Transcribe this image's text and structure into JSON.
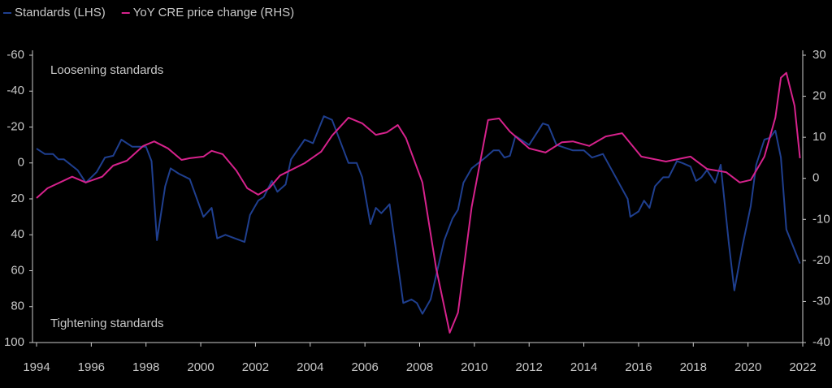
{
  "chart_data": {
    "type": "line",
    "legend": "top-left",
    "y_inverted": true,
    "xlim": [
      1994,
      2022
    ],
    "xticks": [
      1994,
      1996,
      1998,
      2000,
      2002,
      2004,
      2006,
      2008,
      2010,
      2012,
      2014,
      2016,
      2018,
      2020,
      2022
    ],
    "ylim": [
      -60,
      100
    ],
    "yticks": [
      -60,
      -40,
      -20,
      0,
      20,
      40,
      60,
      80,
      100
    ],
    "y2lim": [
      -40,
      30
    ],
    "y2ticks": [
      -40,
      -30,
      -20,
      -10,
      0,
      10,
      20,
      30
    ],
    "annotations": [
      "Loosening standards",
      "Tightening standards"
    ],
    "series": [
      {
        "name": "Standards (LHS)",
        "color": "#1f3f8f",
        "axis": "y",
        "x": [
          1994,
          1994.3,
          1994.6,
          1994.8,
          1995.0,
          1995.5,
          1995.8,
          1996.2,
          1996.5,
          1996.8,
          1997.1,
          1997.5,
          1998.0,
          1998.2,
          1998.4,
          1998.7,
          1998.9,
          1999.2,
          1999.6,
          2000.1,
          2000.4,
          2000.6,
          2000.9,
          2001.6,
          2001.8,
          2002.1,
          2002.3,
          2002.6,
          2002.8,
          2003.1,
          2003.3,
          2003.8,
          2004.1,
          2004.5,
          2004.8,
          2005.4,
          2005.7,
          2005.9,
          2006.2,
          2006.4,
          2006.6,
          2006.9,
          2007.4,
          2007.7,
          2007.9,
          2008.1,
          2008.4,
          2008.9,
          2009.2,
          2009.4,
          2009.6,
          2009.9,
          2010.4,
          2010.7,
          2010.9,
          2011.1,
          2011.3,
          2011.5,
          2011.8,
          2012.0,
          2012.5,
          2012.7,
          2013.0,
          2013.6,
          2014.0,
          2014.3,
          2014.7,
          2015.6,
          2015.7,
          2016.0,
          2016.2,
          2016.4,
          2016.6,
          2016.9,
          2017.1,
          2017.4,
          2017.6,
          2017.9,
          2018.1,
          2018.3,
          2018.5,
          2018.8,
          2019.0,
          2019.3,
          2019.5,
          2019.8,
          2020.1,
          2020.3,
          2020.6,
          2020.8,
          2021.0,
          2021.2,
          2021.4,
          2021.9
        ],
        "values": [
          -8,
          -5,
          -5,
          -2,
          -2,
          4,
          11,
          5,
          -3,
          -4,
          -13,
          -9,
          -9,
          -1,
          43,
          13,
          3,
          6,
          9,
          30,
          25,
          42,
          40,
          44,
          29,
          21,
          19,
          10,
          16,
          12,
          -2,
          -13,
          -11,
          -26,
          -24,
          0,
          0,
          8,
          34,
          25,
          28,
          23,
          78,
          76,
          78,
          84,
          76,
          43,
          31,
          26,
          11,
          3,
          -3,
          -7,
          -7,
          -3,
          -4,
          -15,
          -12,
          -10,
          -22,
          -21,
          -10,
          -7,
          -7,
          -3,
          -5,
          20,
          30,
          27,
          21,
          25,
          13,
          8,
          8,
          -1,
          0,
          2,
          10,
          8,
          4,
          11,
          1,
          45,
          71,
          46,
          24,
          1,
          -13,
          -14,
          -18,
          -3,
          37,
          56
        ]
      },
      {
        "name": "YoY CRE price change (RHS)",
        "color": "#d6228c",
        "axis": "y2",
        "x": [
          1994,
          1994.4,
          1995.3,
          1995.8,
          1996.4,
          1996.8,
          1997.3,
          1997.9,
          1998.3,
          1998.8,
          1999.3,
          1999.6,
          2000.1,
          2000.4,
          2000.8,
          2001.3,
          2001.7,
          2002.1,
          2002.5,
          2002.9,
          2003.8,
          2004.4,
          2004.8,
          2005.4,
          2005.9,
          2006.4,
          2006.8,
          2007.2,
          2007.5,
          2008.1,
          2008.6,
          2009.1,
          2009.4,
          2009.9,
          2010.5,
          2010.9,
          2011.3,
          2012.0,
          2012.6,
          2013.2,
          2013.6,
          2014.2,
          2014.8,
          2015.4,
          2016.1,
          2017.0,
          2017.9,
          2018.5,
          2019.2,
          2019.7,
          2020.1,
          2020.6,
          2021.0,
          2021.2,
          2021.4,
          2021.7,
          2021.9
        ],
        "values": [
          -4.8,
          -2.4,
          0.4,
          -1,
          0.4,
          3.1,
          4.3,
          7.9,
          9.0,
          7.3,
          4.5,
          4.9,
          5.3,
          6.7,
          5.9,
          1.9,
          -2.4,
          -4.0,
          -2.4,
          0.7,
          3.7,
          6.5,
          10.4,
          14.8,
          13.4,
          10.6,
          11.2,
          13.0,
          9.8,
          -1,
          -21.8,
          -37.6,
          -32.7,
          -7,
          14.2,
          14.6,
          11.4,
          7.3,
          6.3,
          8.8,
          9.0,
          7.9,
          10.2,
          11,
          5.3,
          4.1,
          5.3,
          2.3,
          1.5,
          -1,
          -0.4,
          5.3,
          14.8,
          24.5,
          25.7,
          17.7,
          4.9
        ]
      }
    ]
  }
}
